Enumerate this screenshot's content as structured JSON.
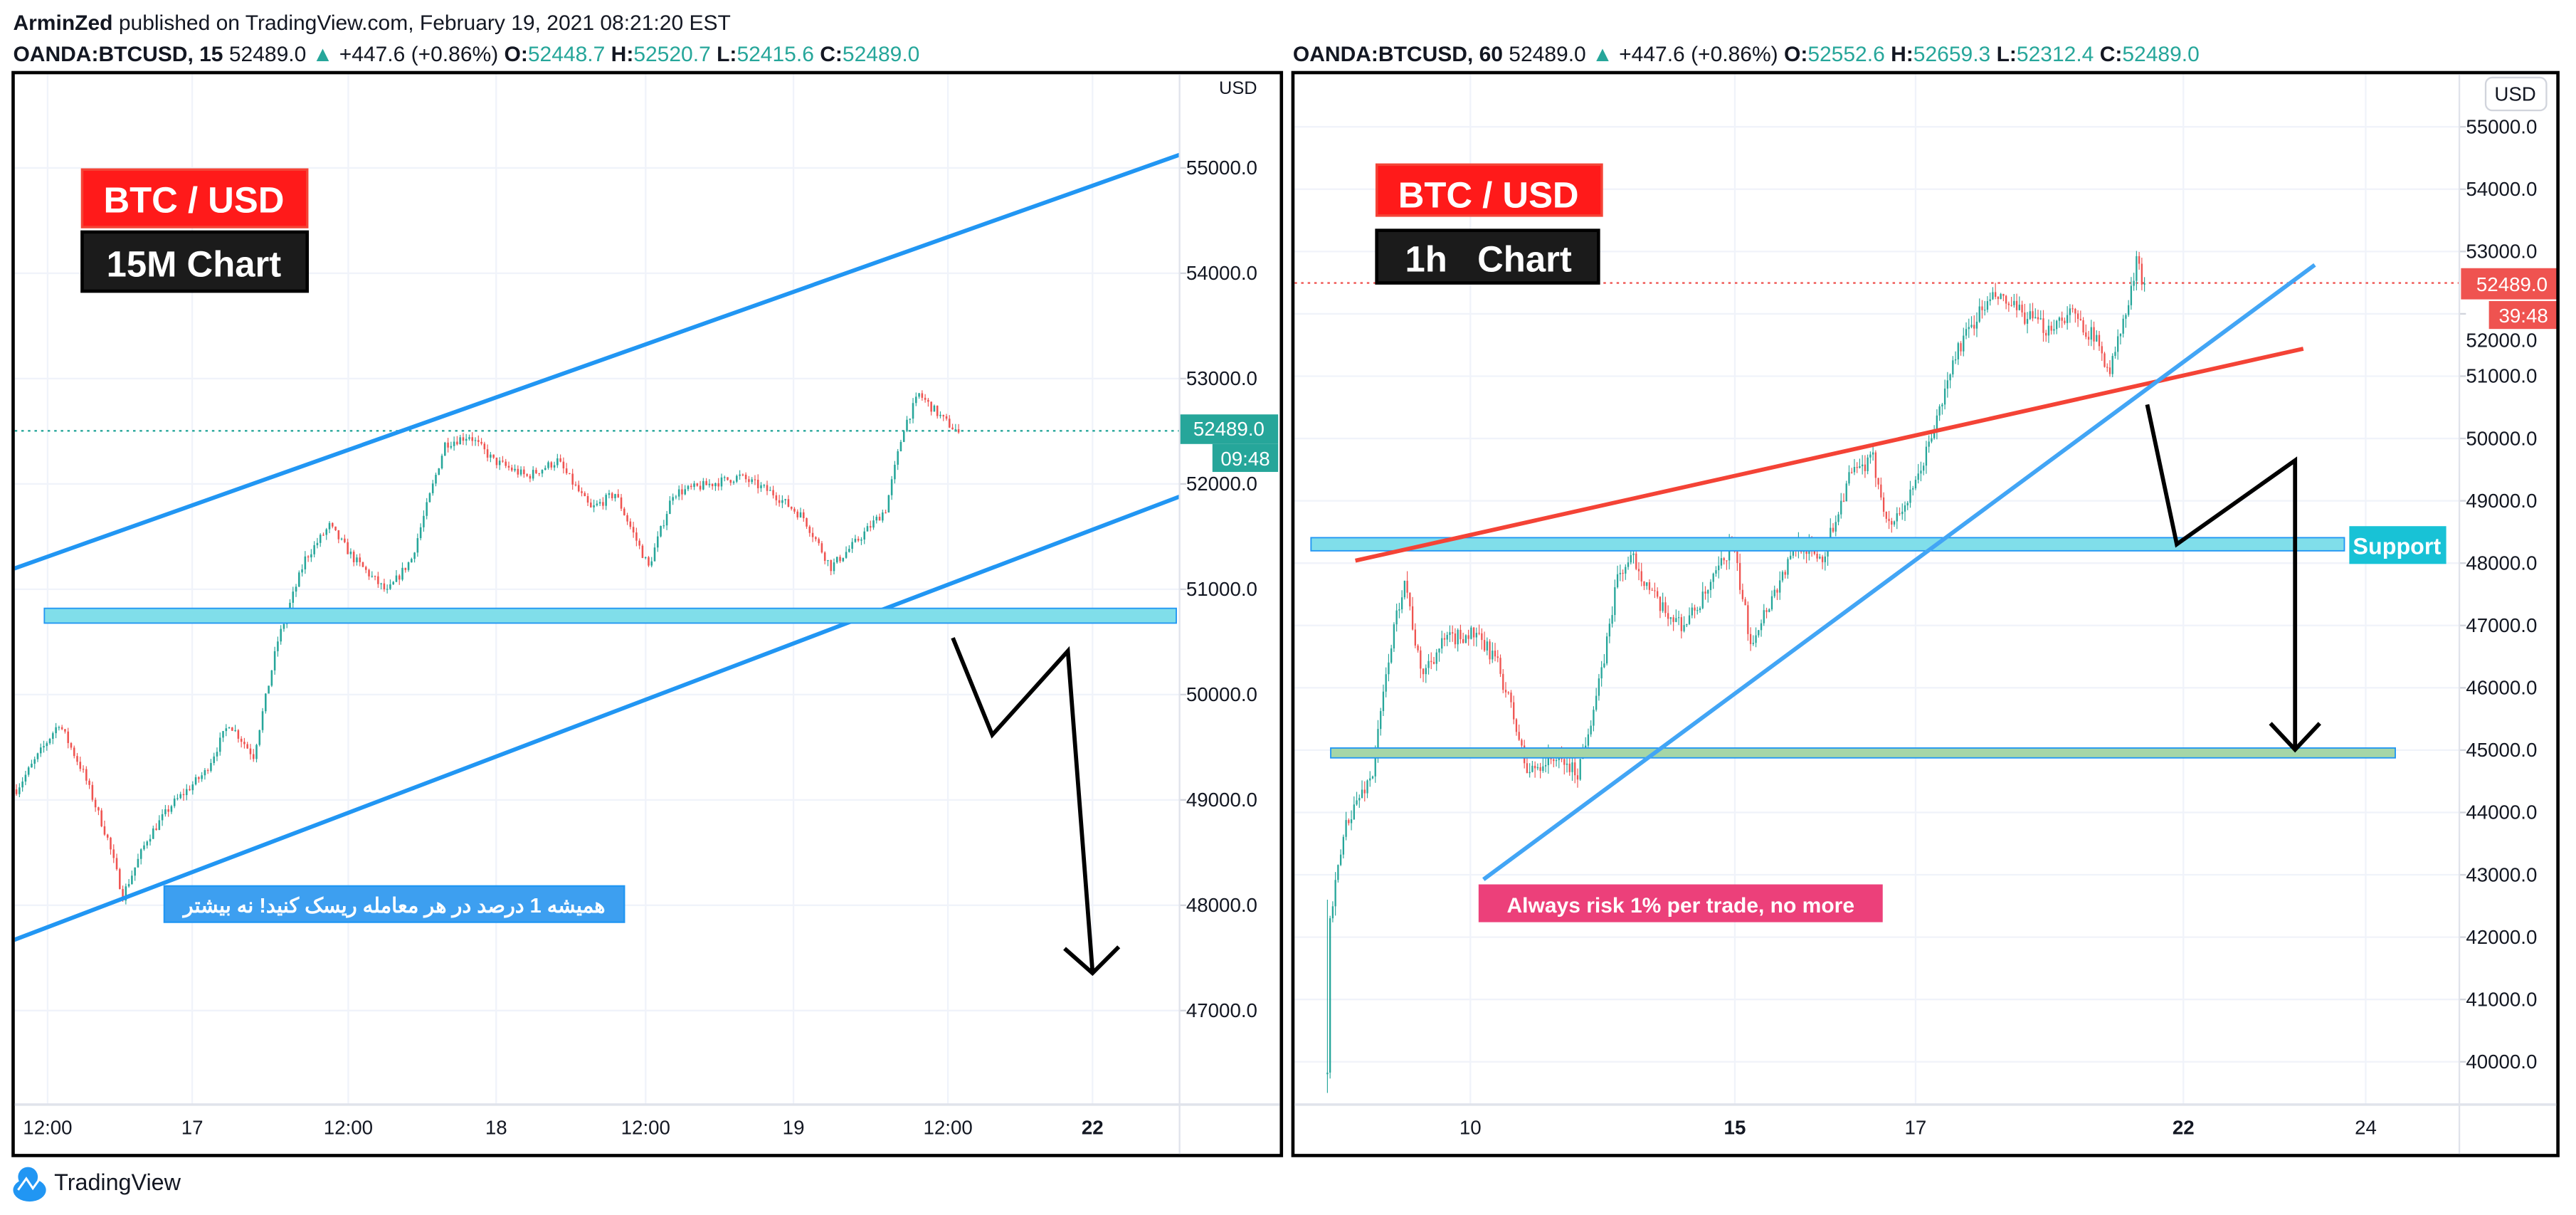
{
  "header": {
    "author": "ArminZed",
    "published": " published on TradingView.com, February 19, 2021 08:21:20 EST"
  },
  "left": {
    "symbol": "OANDA:BTCUSD, 15",
    "last": "52489.0",
    "change": "+447.6 (+0.86%)",
    "o_label": "O:",
    "o": "52448.7",
    "h_label": "H:",
    "h": "52520.7",
    "l_label": "L:",
    "l": "52415.6",
    "c_label": "C:",
    "c": "52489.0",
    "currency": "USD",
    "price_tag": "52489.0",
    "countdown": "09:48",
    "title_box": "BTC / USD",
    "tf_box": "15M Chart",
    "note": "همیشه 1 درصد در هر معامله ریسک کنید!  نه بیشتر"
  },
  "right": {
    "symbol": "OANDA:BTCUSD, 60",
    "last": "52489.0",
    "change": "+447.6 (+0.86%)",
    "o_label": "O:",
    "o": "52552.6",
    "h_label": "H:",
    "h": "52659.3",
    "l_label": "L:",
    "l": "52312.4",
    "c_label": "C:",
    "c": "52489.0",
    "currency": "USD",
    "price_tag": "52489.0",
    "countdown": "39:48",
    "title_box": "BTC / USD",
    "tf_box": "1h   Chart",
    "support_label": "Support",
    "note": "Always risk 1% per trade, no more"
  },
  "footer": {
    "brand": "TradingView"
  },
  "colors": {
    "up": "#26a69a",
    "down": "#ef5350",
    "trend_blue": "#2196f3",
    "trend_red": "#f44336"
  },
  "chart_data": [
    {
      "type": "candlestick",
      "title": "OANDA:BTCUSD, 15",
      "ylabel": "USD",
      "ylim": [
        46000,
        55300
      ],
      "yticks": [
        "55000.0",
        "54000.0",
        "53000.0",
        "52000.0",
        "51000.0",
        "50000.0",
        "49000.0",
        "48000.0",
        "47000.0"
      ],
      "xticks": [
        "12:00",
        "17",
        "12:00",
        "18",
        "12:00",
        "19",
        "12:00",
        "22"
      ],
      "bar_interval": "15m",
      "close_path": [
        [
          0,
          49100
        ],
        [
          14,
          49730
        ],
        [
          22,
          49260
        ],
        [
          30,
          48630
        ],
        [
          35,
          48090
        ],
        [
          43,
          48630
        ],
        [
          51,
          48950
        ],
        [
          62,
          49260
        ],
        [
          70,
          49730
        ],
        [
          78,
          49420
        ],
        [
          86,
          50510
        ],
        [
          95,
          51290
        ],
        [
          103,
          51600
        ],
        [
          111,
          51290
        ],
        [
          122,
          50970
        ],
        [
          130,
          51290
        ],
        [
          141,
          52380
        ],
        [
          149,
          52460
        ],
        [
          157,
          52220
        ],
        [
          168,
          52070
        ],
        [
          178,
          52220
        ],
        [
          189,
          51760
        ],
        [
          197,
          51910
        ],
        [
          208,
          51210
        ],
        [
          216,
          51910
        ],
        [
          227,
          51990
        ],
        [
          238,
          52070
        ],
        [
          249,
          51910
        ],
        [
          259,
          51680
        ],
        [
          268,
          51210
        ],
        [
          276,
          51440
        ],
        [
          286,
          51760
        ],
        [
          292,
          52540
        ],
        [
          297,
          52850
        ],
        [
          305,
          52610
        ],
        [
          310,
          52489
        ]
      ],
      "volatility": 90
    },
    {
      "type": "candlestick",
      "title": "OANDA:BTCUSD, 60",
      "ylabel": "USD",
      "ylim": [
        39500,
        55500
      ],
      "yticks": [
        "55000.0",
        "54000.0",
        "53000.0",
        "52000.0",
        "51000.0",
        "50000.0",
        "49000.0",
        "48000.0",
        "47000.0",
        "46000.0",
        "45000.0",
        "44000.0",
        "43000.0",
        "42000.0",
        "41000.0",
        "40000.0"
      ],
      "xticks": [
        "10",
        "15",
        "17",
        "22",
        "24"
      ],
      "bar_interval": "1h",
      "close_path": [
        [
          0,
          39800
        ],
        [
          1,
          42270
        ],
        [
          7,
          43850
        ],
        [
          17,
          44640
        ],
        [
          23,
          46490
        ],
        [
          29,
          47800
        ],
        [
          35,
          46220
        ],
        [
          44,
          46750
        ],
        [
          54,
          46880
        ],
        [
          63,
          46490
        ],
        [
          69,
          45690
        ],
        [
          75,
          44640
        ],
        [
          85,
          44900
        ],
        [
          94,
          44640
        ],
        [
          103,
          46220
        ],
        [
          109,
          47800
        ],
        [
          115,
          48070
        ],
        [
          125,
          47270
        ],
        [
          134,
          47010
        ],
        [
          143,
          47540
        ],
        [
          152,
          48330
        ],
        [
          159,
          46750
        ],
        [
          168,
          47540
        ],
        [
          177,
          48330
        ],
        [
          186,
          48070
        ],
        [
          196,
          49380
        ],
        [
          205,
          49650
        ],
        [
          211,
          48590
        ],
        [
          220,
          49120
        ],
        [
          230,
          50440
        ],
        [
          236,
          51360
        ],
        [
          245,
          52020
        ],
        [
          251,
          52280
        ],
        [
          260,
          52020
        ],
        [
          270,
          51760
        ],
        [
          279,
          52020
        ],
        [
          288,
          51630
        ],
        [
          294,
          51100
        ],
        [
          301,
          52150
        ],
        [
          304,
          52810
        ],
        [
          307,
          52489
        ]
      ],
      "volatility": 260
    }
  ]
}
